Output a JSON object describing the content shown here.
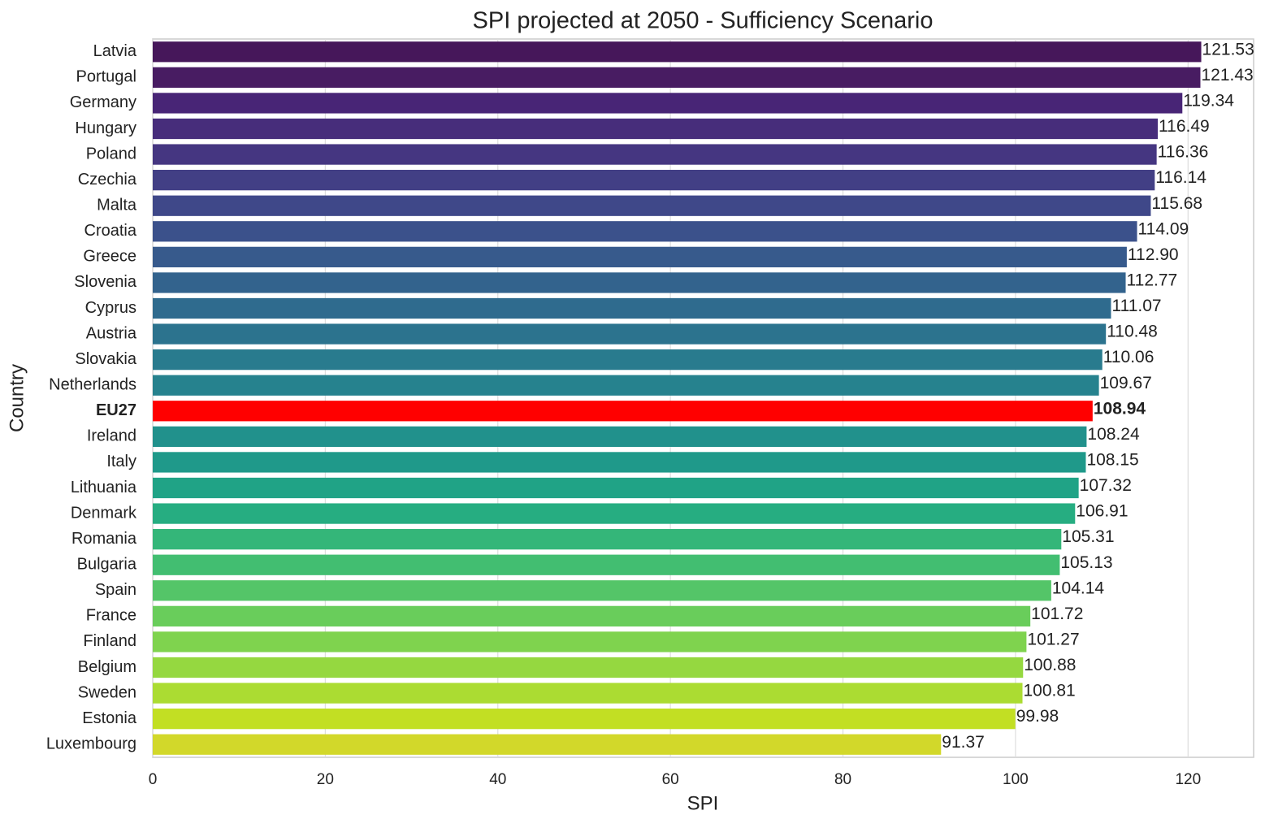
{
  "chart_data": {
    "type": "barh",
    "title": "SPI projected at 2050 - Sufficiency Scenario",
    "xlabel": "SPI",
    "ylabel": "Country",
    "categories": [
      "Latvia",
      "Portugal",
      "Germany",
      "Hungary",
      "Poland",
      "Czechia",
      "Malta",
      "Croatia",
      "Greece",
      "Slovenia",
      "Cyprus",
      "Austria",
      "Slovakia",
      "Netherlands",
      "EU27",
      "Ireland",
      "Italy",
      "Lithuania",
      "Denmark",
      "Romania",
      "Bulgaria",
      "Spain",
      "France",
      "Finland",
      "Belgium",
      "Sweden",
      "Estonia",
      "Luxembourg"
    ],
    "values": [
      121.53,
      121.43,
      119.34,
      116.49,
      116.36,
      116.14,
      115.68,
      114.09,
      112.9,
      112.77,
      111.07,
      110.48,
      110.06,
      109.67,
      108.94,
      108.24,
      108.15,
      107.32,
      106.91,
      105.31,
      105.13,
      104.14,
      101.72,
      101.27,
      100.88,
      100.81,
      99.98,
      91.37
    ],
    "value_labels": [
      "121.53",
      "121.43",
      "119.34",
      "116.49",
      "116.36",
      "116.14",
      "115.68",
      "114.09",
      "112.90",
      "112.77",
      "111.07",
      "110.48",
      "110.06",
      "109.67",
      "108.94",
      "108.24",
      "108.15",
      "107.32",
      "106.91",
      "105.31",
      "105.13",
      "104.14",
      "101.72",
      "101.27",
      "100.88",
      "100.81",
      "99.98",
      "91.37"
    ],
    "colors": [
      "#46175a",
      "#481c62",
      "#482576",
      "#472d7b",
      "#453681",
      "#423f85",
      "#3f4889",
      "#3b518b",
      "#375a8c",
      "#33638d",
      "#2f6b8e",
      "#2c738e",
      "#297b8e",
      "#26828e",
      "#ff0000",
      "#21918c",
      "#1f998a",
      "#20a386",
      "#26ad81",
      "#34b679",
      "#42be71",
      "#54c568",
      "#69cd5b",
      "#7fd34e",
      "#95d840",
      "#abdc32",
      "#c2df23",
      "#d2d82a"
    ],
    "highlight_index": 14,
    "xlim": [
      0,
      127.6
    ],
    "xticks": [
      0,
      20,
      40,
      60,
      80,
      100,
      120
    ],
    "grid": true
  }
}
